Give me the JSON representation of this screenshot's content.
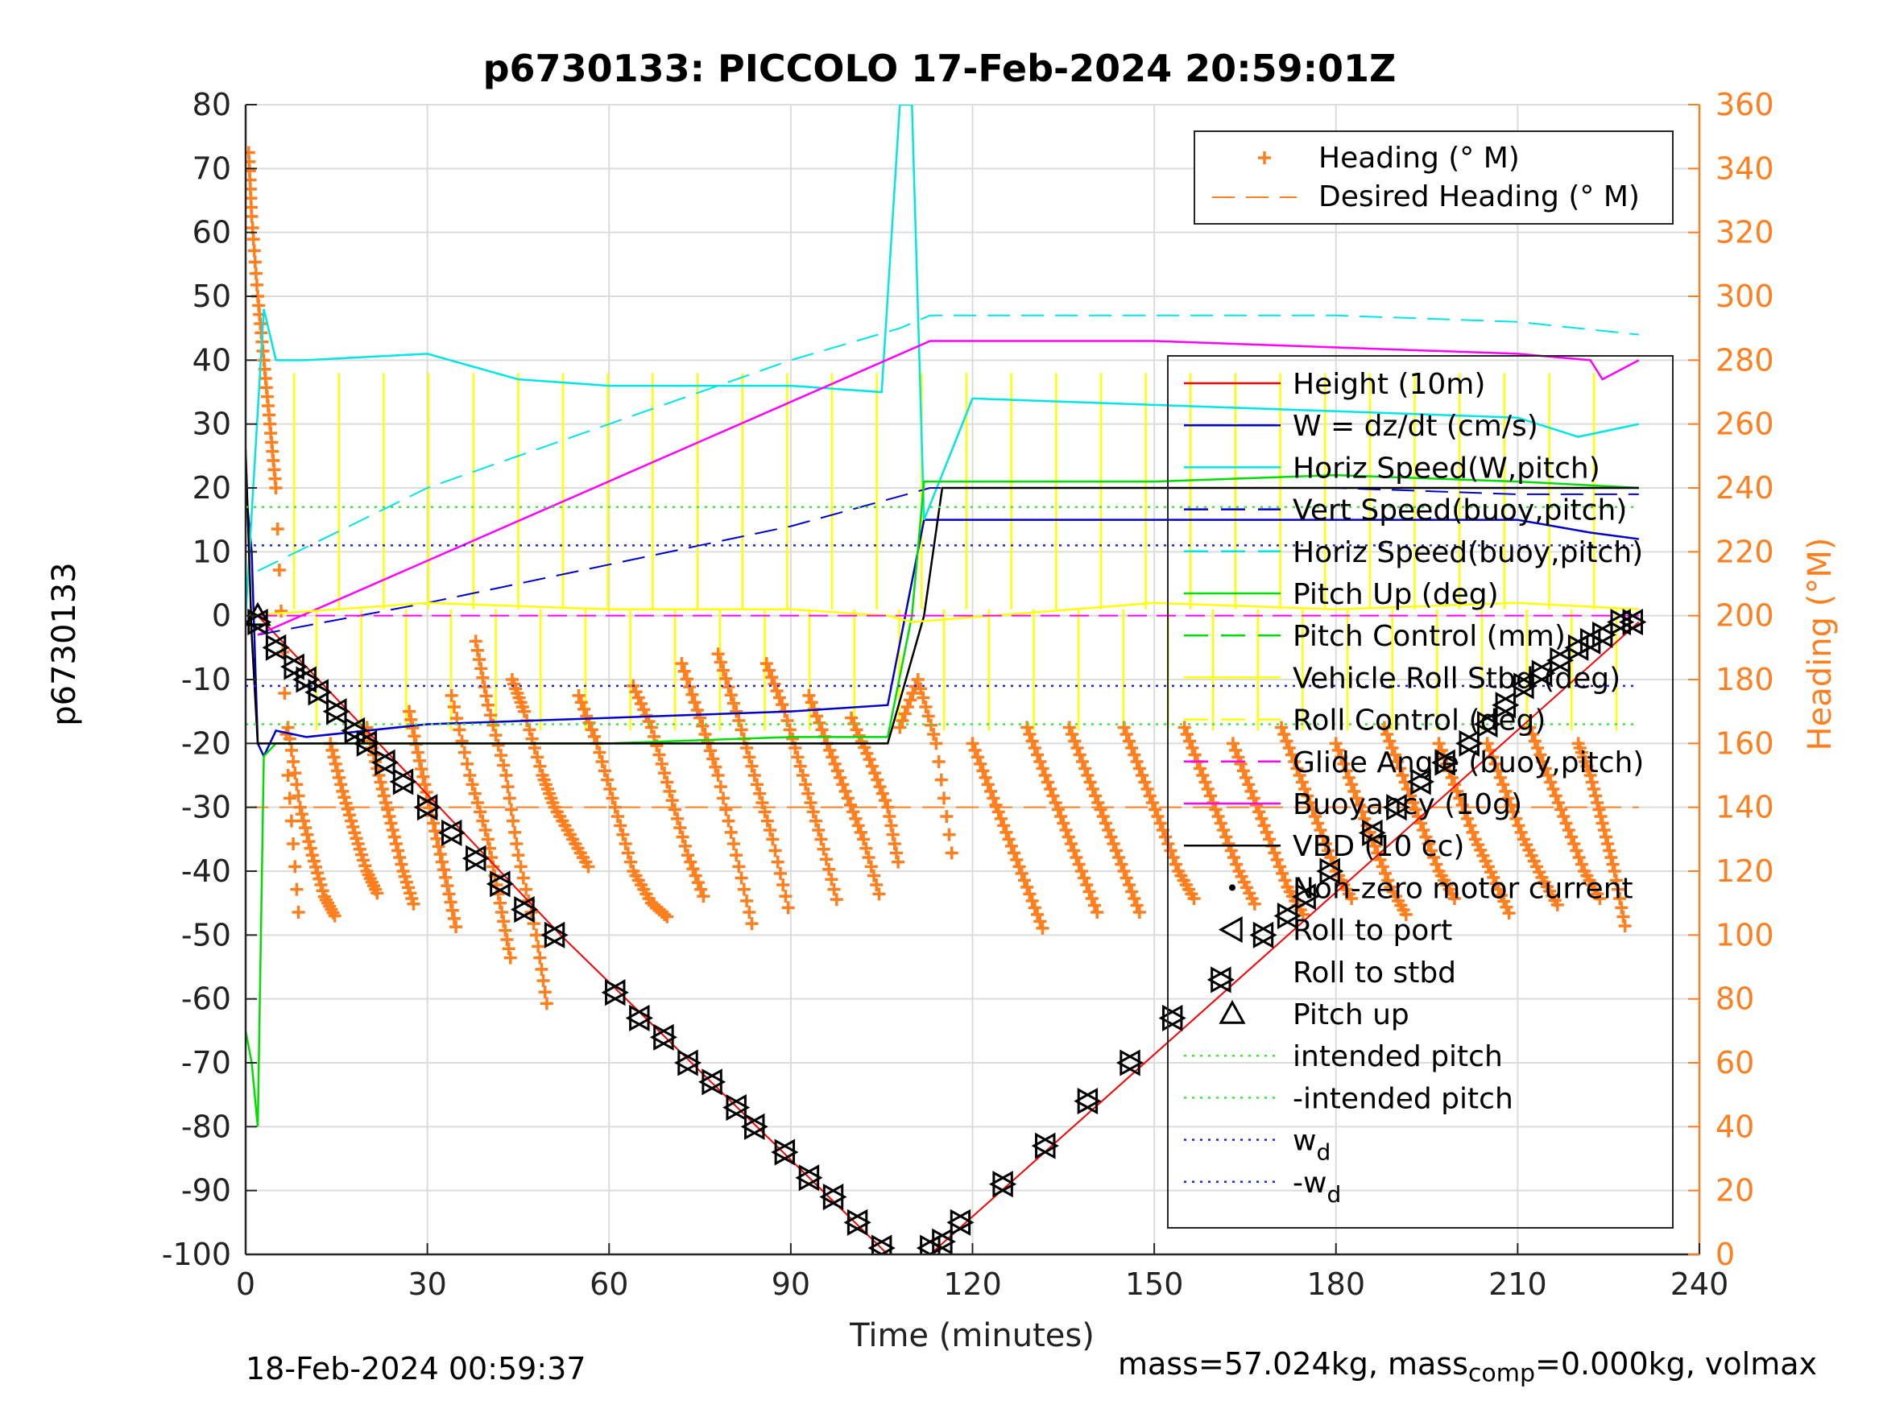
{
  "title": "p6730133: PICCOLO 17-Feb-2024 20:59:01Z",
  "footer_left": "18-Feb-2024 00:59:37",
  "footer_right": {
    "prefix": "mass=57.024kg, mass",
    "sub": "comp",
    "suffix": "=0.000kg, volmax"
  },
  "chart_data": {
    "type": "line",
    "title": "p6730133: PICCOLO 17-Feb-2024 20:59:01Z",
    "xlabel": "Time (minutes)",
    "ylabel_left": "p6730133",
    "ylabel_right": "Heading (°M)",
    "xlim": [
      0,
      240
    ],
    "ylim_left": [
      -100,
      80
    ],
    "ylim_right": [
      0,
      360
    ],
    "x_ticks": [
      "0",
      "30",
      "60",
      "90",
      "120",
      "150",
      "180",
      "210",
      "240"
    ],
    "y_ticks_left": [
      "80",
      "70",
      "60",
      "50",
      "40",
      "30",
      "20",
      "10",
      "0",
      "-10",
      "-20",
      "-30",
      "-40",
      "-50",
      "-60",
      "-70",
      "-80",
      "-90",
      "-100"
    ],
    "y_ticks_right": [
      "360",
      "340",
      "320",
      "300",
      "280",
      "260",
      "240",
      "220",
      "200",
      "180",
      "160",
      "140",
      "120",
      "100",
      "80",
      "60",
      "40",
      "20",
      "0"
    ],
    "grid": true,
    "colors": {
      "heading": "#ff7f1f",
      "height": "#ff0000",
      "w": "#0000cc",
      "horiz": "#00e5e5",
      "pitch": "#00dd00",
      "roll": "#ffff00",
      "glide": "#ff00ff",
      "vbd": "#000000",
      "intended": "#33ee33",
      "wd": "#2222dd"
    },
    "legend_top_right": {
      "placement": "top-right",
      "entries": [
        "Heading (° M)",
        "Desired Heading (° M)"
      ]
    },
    "legend_main": {
      "placement": "right",
      "entries": [
        "Height (10m)",
        "W = dz/dt (cm/s)",
        "Horiz Speed(W,pitch)",
        "Vert Speed(buoy,pitch)",
        "Horiz Speed(buoy,pitch)",
        "Pitch Up (deg)",
        "Pitch Control (mm)",
        "Vehicle Roll Stbd (deg)",
        "Roll Control (deg)",
        "Glide Angle (buoy,pitch)",
        "Buoyancy (10g)",
        "VBD (10 cc)",
        "Non-zero motor current",
        "Roll to port",
        "Roll to stbd",
        "Pitch up",
        "intended pitch",
        "-intended pitch",
        "w",
        "-w"
      ],
      "subscript_d": "d"
    },
    "series": [
      {
        "name": "Height (10m)",
        "x": [
          0,
          2,
          52,
          106,
          113,
          230
        ],
        "y": [
          0,
          0,
          -50,
          -100,
          -100,
          -1
        ]
      },
      {
        "name": "W = dz/dt (cm/s)",
        "x": [
          0,
          1,
          2,
          3,
          5,
          10,
          30,
          60,
          90,
          106,
          112,
          120,
          150,
          180,
          210,
          222,
          230
        ],
        "y": [
          20,
          10,
          -20,
          -22,
          -18,
          -19,
          -17,
          -16,
          -15,
          -14,
          15,
          15,
          15,
          15,
          15,
          13,
          12
        ]
      },
      {
        "name": "Horiz Speed(W,pitch)",
        "x": [
          0,
          3,
          5,
          10,
          30,
          45,
          60,
          90,
          105,
          108,
          110,
          112,
          120,
          150,
          180,
          210,
          220,
          230
        ],
        "y": [
          0,
          48,
          40,
          40,
          41,
          37,
          36,
          36,
          35,
          80,
          80,
          15,
          34,
          33,
          32,
          31,
          28,
          30
        ]
      },
      {
        "name": "Vert Speed(buoy,pitch)",
        "x": [
          2,
          30,
          60,
          90,
          113,
          150,
          180,
          210,
          230
        ],
        "y": [
          -3,
          2,
          8,
          14,
          20,
          20,
          20,
          19,
          19
        ]
      },
      {
        "name": "Horiz Speed(buoy,pitch)",
        "x": [
          2,
          30,
          60,
          90,
          108,
          113,
          150,
          180,
          210,
          230
        ],
        "y": [
          7,
          20,
          30,
          40,
          45,
          47,
          47,
          47,
          46,
          44
        ]
      },
      {
        "name": "Pitch Up (deg)",
        "x": [
          0,
          1,
          2,
          3,
          5,
          30,
          60,
          90,
          106,
          110,
          112,
          150,
          180,
          210,
          230
        ],
        "y": [
          -65,
          -70,
          -80,
          -22,
          -20,
          -20,
          -20,
          -19,
          -19,
          0,
          21,
          21,
          22,
          21,
          20
        ]
      },
      {
        "name": "Glide Angle (buoy,pitch)",
        "x": [
          2,
          113,
          150,
          180,
          210,
          222,
          224,
          230
        ],
        "y": [
          -3,
          43,
          43,
          42,
          41,
          40,
          37,
          40
        ]
      },
      {
        "name": "VBD (10 cc)",
        "x": [
          0,
          1,
          2,
          106,
          112,
          115,
          230
        ],
        "y": [
          26,
          -3,
          -20,
          -20,
          0,
          20,
          20
        ]
      },
      {
        "name": "Vehicle Roll Stbd (deg)",
        "x": [
          0,
          30,
          60,
          90,
          106,
          110,
          150,
          180,
          210,
          230
        ],
        "y": [
          0,
          2,
          1,
          1,
          0,
          -1,
          2,
          1,
          2,
          1
        ]
      },
      {
        "name": "intended pitch",
        "x": [
          0,
          230
        ],
        "y": [
          17,
          17
        ]
      },
      {
        "name": "-intended pitch",
        "x": [
          0,
          230
        ],
        "y": [
          -17,
          -17
        ]
      },
      {
        "name": "w_d",
        "x": [
          0,
          230
        ],
        "y": [
          11,
          11
        ]
      },
      {
        "name": "-w_d",
        "x": [
          0,
          230
        ],
        "y": [
          -11,
          -11
        ]
      }
    ],
    "heading_segments": [
      {
        "x": [
          0.5,
          1,
          2,
          3,
          4,
          5,
          7,
          9
        ],
        "y": [
          345,
          325,
          300,
          280,
          260,
          240,
          150,
          100
        ]
      },
      {
        "x": [
          7,
          9,
          11,
          13,
          15
        ],
        "y": [
          165,
          140,
          125,
          112,
          105
        ]
      },
      {
        "x": [
          14,
          16,
          18,
          20,
          22
        ],
        "y": [
          160,
          145,
          132,
          120,
          112
        ]
      },
      {
        "x": [
          20,
          22,
          24,
          26,
          28
        ],
        "y": [
          165,
          150,
          135,
          120,
          108
        ]
      },
      {
        "x": [
          27,
          29,
          31,
          33,
          35
        ],
        "y": [
          170,
          152,
          135,
          118,
          100
        ]
      },
      {
        "x": [
          34,
          37,
          40,
          42,
          44
        ],
        "y": [
          175,
          150,
          130,
          110,
          90
        ]
      },
      {
        "x": [
          38,
          40,
          43,
          45,
          48,
          50
        ],
        "y": [
          192,
          172,
          150,
          125,
          100,
          75
        ]
      },
      {
        "x": [
          44,
          46,
          49,
          51,
          54,
          57
        ],
        "y": [
          180,
          170,
          150,
          140,
          130,
          120
        ]
      },
      {
        "x": [
          55,
          58,
          61,
          64,
          67,
          70
        ],
        "y": [
          175,
          160,
          140,
          120,
          110,
          105
        ]
      },
      {
        "x": [
          64,
          67,
          70,
          73,
          76
        ],
        "y": [
          178,
          165,
          145,
          125,
          110
        ]
      },
      {
        "x": [
          72,
          75,
          78,
          81,
          84
        ],
        "y": [
          185,
          168,
          150,
          125,
          100
        ]
      },
      {
        "x": [
          78,
          81,
          84,
          87,
          90
        ],
        "y": [
          188,
          170,
          150,
          130,
          105
        ]
      },
      {
        "x": [
          86,
          89,
          92,
          95,
          98
        ],
        "y": [
          185,
          170,
          150,
          130,
          108
        ]
      },
      {
        "x": [
          93,
          96,
          99,
          102,
          105
        ],
        "y": [
          175,
          160,
          145,
          130,
          110
        ]
      },
      {
        "x": [
          100,
          103,
          106,
          108
        ],
        "y": [
          168,
          155,
          140,
          120
        ]
      },
      {
        "x": [
          108,
          111,
          114,
          117
        ],
        "y": [
          165,
          180,
          160,
          120
        ]
      },
      {
        "x": [
          120,
          123,
          126,
          129,
          132
        ],
        "y": [
          160,
          145,
          130,
          115,
          100
        ]
      },
      {
        "x": [
          129,
          132,
          135,
          138,
          141
        ],
        "y": [
          165,
          150,
          135,
          120,
          105
        ]
      },
      {
        "x": [
          136,
          139,
          142,
          145,
          148
        ],
        "y": [
          165,
          150,
          135,
          120,
          105
        ]
      },
      {
        "x": [
          145,
          148,
          151,
          154,
          157
        ],
        "y": [
          165,
          150,
          135,
          120,
          110
        ]
      },
      {
        "x": [
          155,
          158,
          161,
          164,
          167
        ],
        "y": [
          165,
          150,
          135,
          120,
          108
        ]
      },
      {
        "x": [
          163,
          166,
          169,
          172,
          175
        ],
        "y": [
          160,
          145,
          130,
          115,
          105
        ]
      },
      {
        "x": [
          171,
          174,
          177,
          180,
          183
        ],
        "y": [
          165,
          150,
          135,
          120,
          110
        ]
      },
      {
        "x": [
          180,
          183,
          186,
          189,
          192
        ],
        "y": [
          160,
          145,
          130,
          115,
          105
        ]
      },
      {
        "x": [
          188,
          191,
          194,
          197,
          200
        ],
        "y": [
          165,
          150,
          135,
          120,
          110
        ]
      },
      {
        "x": [
          197,
          200,
          203,
          206,
          209
        ],
        "y": [
          160,
          145,
          130,
          118,
          105
        ]
      },
      {
        "x": [
          205,
          208,
          211,
          214,
          217
        ],
        "y": [
          160,
          145,
          130,
          118,
          108
        ]
      },
      {
        "x": [
          212,
          215,
          218,
          221,
          224
        ],
        "y": [
          165,
          150,
          135,
          120,
          110
        ]
      },
      {
        "x": [
          220,
          222,
          224,
          226,
          228
        ],
        "y": [
          160,
          150,
          135,
          120,
          100
        ]
      }
    ],
    "desired_heading": {
      "x": [
        0,
        230
      ],
      "y": [
        140,
        140
      ]
    },
    "markers_dive": {
      "x": [
        2,
        5,
        8,
        10,
        12,
        15,
        18,
        20,
        23,
        26,
        30,
        34,
        38,
        42,
        46,
        51,
        61,
        65,
        69,
        73,
        77,
        81,
        84,
        89,
        93,
        97,
        101,
        105
      ],
      "y": [
        -1,
        -5,
        -8,
        -10,
        -12,
        -15,
        -18,
        -20,
        -23,
        -26,
        -30,
        -34,
        -38,
        -42,
        -46,
        -50,
        -59,
        -63,
        -66,
        -70,
        -73,
        -77,
        -80,
        -84,
        -88,
        -91,
        -95,
        -99
      ]
    },
    "markers_climb": {
      "x": [
        113,
        115,
        118,
        125,
        132,
        139,
        146,
        153,
        161,
        168,
        172,
        175,
        179,
        186,
        190,
        194,
        198,
        202,
        205,
        208,
        211,
        214,
        217,
        220,
        222,
        224,
        227,
        229
      ],
      "y": [
        -99,
        -98,
        -95,
        -89,
        -83,
        -76,
        -70,
        -63,
        -57,
        -50,
        -47,
        -44,
        -40,
        -34,
        -30,
        -26,
        -23,
        -20,
        -17,
        -14,
        -11,
        -9,
        -7,
        -5,
        -4,
        -3,
        -1,
        -1
      ]
    }
  }
}
